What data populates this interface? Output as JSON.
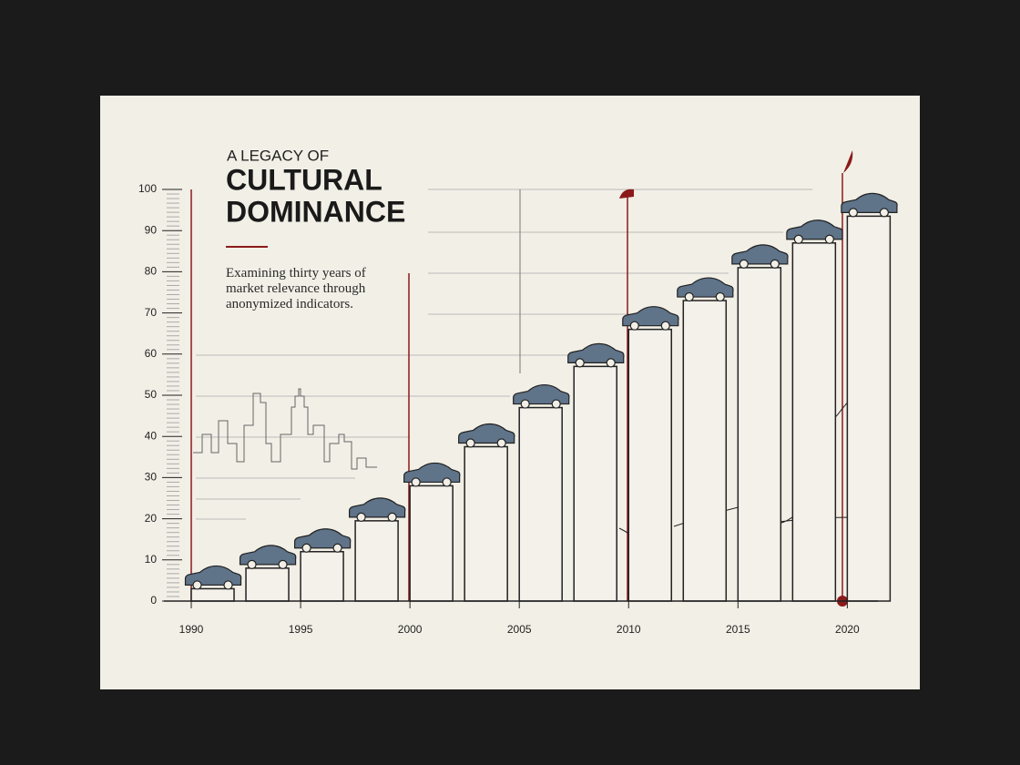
{
  "chart_data": {
    "type": "bar",
    "title_lines": [
      "A LEGACY OF",
      "CULTURAL",
      "DOMINANCE"
    ],
    "subtitle": "Examining thirty years of market relevance through anonymized indicators.",
    "x": [
      1990,
      1992.5,
      1995,
      1997.5,
      2000,
      2002.5,
      2005,
      2007.5,
      2010,
      2012.5,
      2015,
      2017.5,
      2020
    ],
    "values": [
      3,
      8,
      12,
      19.5,
      28,
      37.5,
      47,
      57,
      66,
      73,
      81,
      87,
      93.5
    ],
    "color": "#f4f1ea",
    "xlim": [
      1988.75,
      2021.4
    ],
    "xticks": [
      1990,
      1995,
      2000,
      2005,
      2010,
      2015,
      2020
    ],
    "ylim": [
      0,
      100
    ],
    "yticks": [
      0,
      10,
      20,
      30,
      40,
      50,
      60,
      70,
      80,
      90,
      100
    ]
  }
}
